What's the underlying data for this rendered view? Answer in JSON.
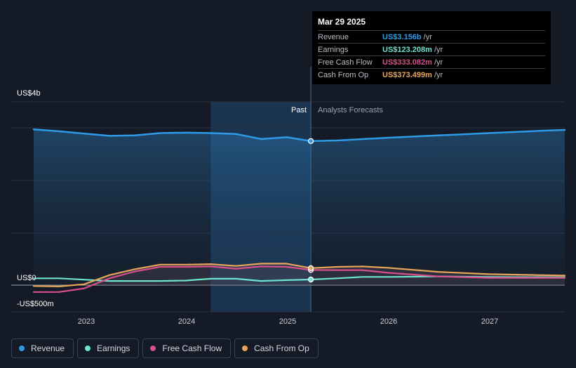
{
  "chart_data": {
    "type": "line",
    "x_ticks": [
      "2023",
      "2024",
      "2025",
      "2026",
      "2027"
    ],
    "y_ticks": [
      "US$4b",
      "US$0",
      "-US$500m"
    ],
    "past_label": "Past",
    "forecast_label": "Analysts Forecasts",
    "colors": {
      "revenue": "#2e9be8",
      "earnings": "#6ee3cf",
      "fcf": "#d6508a",
      "cfo": "#e7a55a"
    },
    "series": [
      {
        "name": "Revenue",
        "key": "revenue",
        "points": [
          [
            2022.5,
            3.41
          ],
          [
            2022.75,
            3.37
          ],
          [
            2023.0,
            3.32
          ],
          [
            2023.25,
            3.27
          ],
          [
            2023.5,
            3.28
          ],
          [
            2023.75,
            3.33
          ],
          [
            2024.0,
            3.34
          ],
          [
            2024.25,
            3.33
          ],
          [
            2024.5,
            3.31
          ],
          [
            2024.75,
            3.2
          ],
          [
            2025.0,
            3.24
          ],
          [
            2025.24,
            3.156
          ],
          [
            2025.5,
            3.17
          ],
          [
            2026.0,
            3.23
          ],
          [
            2026.5,
            3.28
          ],
          [
            2027.0,
            3.33
          ],
          [
            2027.5,
            3.38
          ],
          [
            2027.75,
            3.4
          ]
        ]
      },
      {
        "name": "Earnings",
        "key": "earnings",
        "points": [
          [
            2022.5,
            0.15
          ],
          [
            2022.75,
            0.15
          ],
          [
            2023.0,
            0.12
          ],
          [
            2023.25,
            0.09
          ],
          [
            2023.5,
            0.09
          ],
          [
            2023.75,
            0.09
          ],
          [
            2024.0,
            0.1
          ],
          [
            2024.25,
            0.14
          ],
          [
            2024.5,
            0.14
          ],
          [
            2024.75,
            0.09
          ],
          [
            2025.0,
            0.11
          ],
          [
            2025.24,
            0.123
          ],
          [
            2025.5,
            0.15
          ],
          [
            2025.75,
            0.18
          ],
          [
            2026.0,
            0.18
          ],
          [
            2026.5,
            0.19
          ],
          [
            2027.0,
            0.18
          ],
          [
            2027.75,
            0.17
          ]
        ]
      },
      {
        "name": "Free Cash Flow",
        "key": "fcf",
        "points": [
          [
            2022.5,
            -0.15
          ],
          [
            2022.75,
            -0.15
          ],
          [
            2023.0,
            -0.07
          ],
          [
            2023.25,
            0.15
          ],
          [
            2023.5,
            0.3
          ],
          [
            2023.75,
            0.4
          ],
          [
            2024.0,
            0.4
          ],
          [
            2024.25,
            0.41
          ],
          [
            2024.5,
            0.36
          ],
          [
            2024.75,
            0.41
          ],
          [
            2025.0,
            0.4
          ],
          [
            2025.24,
            0.333
          ],
          [
            2025.5,
            0.33
          ],
          [
            2025.75,
            0.33
          ],
          [
            2026.0,
            0.27
          ],
          [
            2026.5,
            0.19
          ],
          [
            2027.0,
            0.16
          ],
          [
            2027.75,
            0.16
          ]
        ]
      },
      {
        "name": "Cash From Op",
        "key": "cfo",
        "points": [
          [
            2022.5,
            -0.02
          ],
          [
            2022.75,
            -0.03
          ],
          [
            2023.0,
            0.02
          ],
          [
            2023.25,
            0.22
          ],
          [
            2023.5,
            0.35
          ],
          [
            2023.75,
            0.45
          ],
          [
            2024.0,
            0.45
          ],
          [
            2024.25,
            0.46
          ],
          [
            2024.5,
            0.42
          ],
          [
            2024.75,
            0.47
          ],
          [
            2025.0,
            0.47
          ],
          [
            2025.24,
            0.373
          ],
          [
            2025.5,
            0.4
          ],
          [
            2025.75,
            0.41
          ],
          [
            2026.0,
            0.38
          ],
          [
            2026.5,
            0.29
          ],
          [
            2027.0,
            0.24
          ],
          [
            2027.75,
            0.21
          ]
        ]
      }
    ],
    "tooltip": {
      "date": "Mar 29 2025",
      "rows": [
        {
          "label": "Revenue",
          "value": "US$3.156b",
          "unit": "/yr",
          "color": "#2e9be8"
        },
        {
          "label": "Earnings",
          "value": "US$123.208m",
          "unit": "/yr",
          "color": "#6ee3cf"
        },
        {
          "label": "Free Cash Flow",
          "value": "US$333.082m",
          "unit": "/yr",
          "color": "#d6508a"
        },
        {
          "label": "Cash From Op",
          "value": "US$373.499m",
          "unit": "/yr",
          "color": "#e7a55a"
        }
      ]
    },
    "legend": [
      {
        "label": "Revenue",
        "color": "#2e9be8"
      },
      {
        "label": "Earnings",
        "color": "#6ee3cf"
      },
      {
        "label": "Free Cash Flow",
        "color": "#d6508a"
      },
      {
        "label": "Cash From Op",
        "color": "#e7a55a"
      }
    ]
  }
}
